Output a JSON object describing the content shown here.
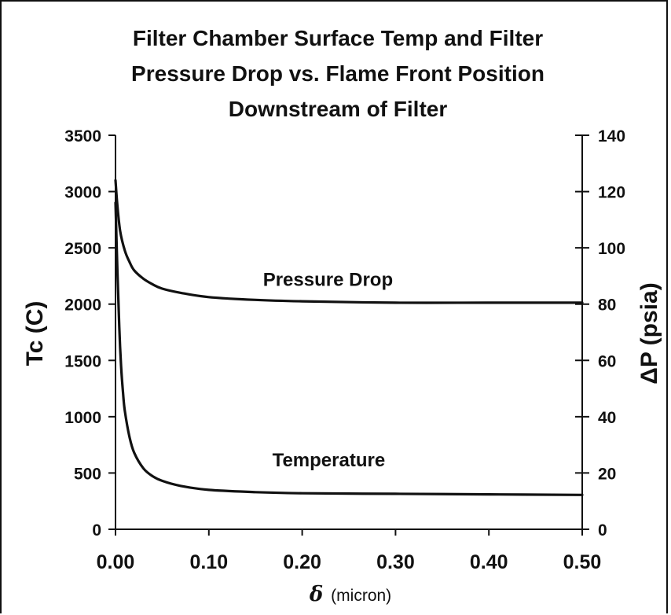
{
  "chart_data": {
    "type": "line",
    "title_lines": [
      "Filter Chamber Surface Temp and Filter",
      "Pressure Drop vs. Flame Front Position",
      "Downstream of Filter"
    ],
    "xlabel_symbol": "δ",
    "xlabel_unit": "(micron)",
    "ylabel": "Tc (C)",
    "y2label": "ΔP (psia)",
    "xlim": [
      0.0,
      0.5
    ],
    "ylim": [
      0,
      3500
    ],
    "y2lim": [
      0,
      140
    ],
    "x_ticks": [
      "0.00",
      "0.10",
      "0.20",
      "0.30",
      "0.40",
      "0.50"
    ],
    "y_ticks": [
      "0",
      "500",
      "1000",
      "1500",
      "2000",
      "2500",
      "3000",
      "3500"
    ],
    "y2_ticks": [
      "0",
      "20",
      "40",
      "60",
      "80",
      "100",
      "120",
      "140"
    ],
    "grid": false,
    "series": [
      {
        "name": "Pressure Drop",
        "axis": "right",
        "x": [
          0.0,
          0.002,
          0.005,
          0.01,
          0.015,
          0.02,
          0.03,
          0.04,
          0.05,
          0.07,
          0.1,
          0.15,
          0.2,
          0.3,
          0.4,
          0.5
        ],
        "y": [
          124,
          115,
          106,
          99,
          95,
          92,
          89,
          87,
          85.5,
          84,
          82.5,
          81.5,
          81,
          80.5,
          80.5,
          80.5
        ]
      },
      {
        "name": "Temperature",
        "axis": "left",
        "x": [
          0.0,
          0.002,
          0.004,
          0.006,
          0.008,
          0.01,
          0.015,
          0.02,
          0.03,
          0.04,
          0.05,
          0.07,
          0.1,
          0.15,
          0.2,
          0.3,
          0.4,
          0.5
        ],
        "y": [
          2900,
          2300,
          1800,
          1450,
          1220,
          1050,
          820,
          680,
          540,
          470,
          430,
          385,
          350,
          330,
          320,
          315,
          310,
          305
        ]
      }
    ],
    "annotations": [
      {
        "text": "Pressure Drop",
        "series": "Pressure Drop"
      },
      {
        "text": "Temperature",
        "series": "Temperature"
      }
    ]
  }
}
